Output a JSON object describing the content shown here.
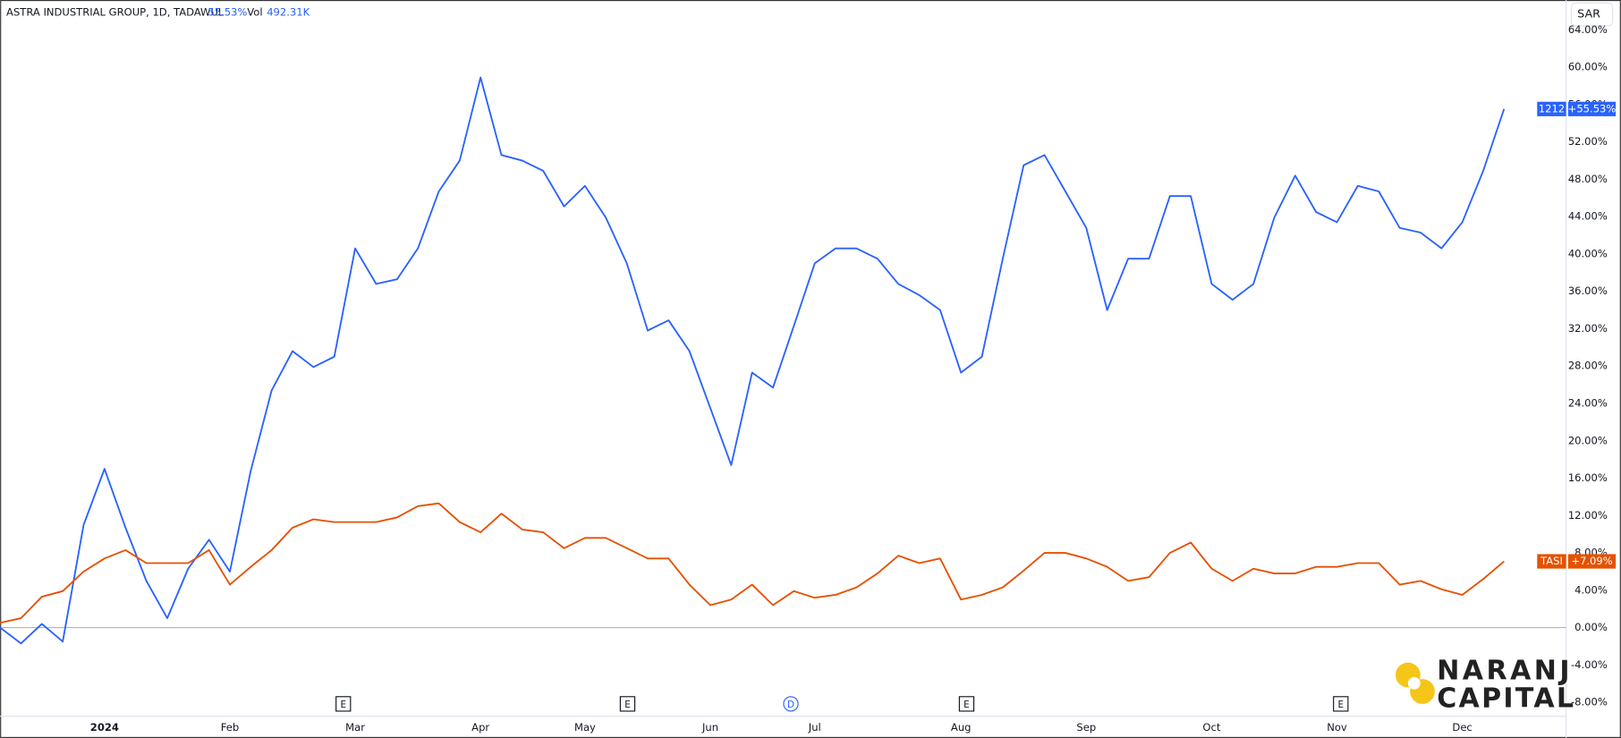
{
  "header": {
    "title": "ASTRA INDUSTRIAL GROUP, 1D, TADAWUL",
    "change": "55.53%",
    "vol_label": "Vol",
    "vol_value": "492.31K"
  },
  "currency": "SAR",
  "events": [
    "E",
    "E",
    "D",
    "E",
    "E"
  ],
  "logo": {
    "line1": "NARANJ",
    "line2": "CAPITAL"
  },
  "chart_data": {
    "type": "line",
    "categories": [
      null,
      null,
      null,
      null,
      null,
      "2024",
      null,
      null,
      null,
      null,
      null,
      "Feb",
      null,
      null,
      null,
      null,
      null,
      "Mar",
      null,
      null,
      null,
      null,
      null,
      "Apr",
      null,
      null,
      null,
      null,
      "May",
      null,
      null,
      null,
      null,
      null,
      "Jun",
      null,
      null,
      null,
      null,
      "Jul",
      null,
      null,
      null,
      null,
      null,
      null,
      "Aug",
      null,
      null,
      null,
      null,
      null,
      "Sep",
      null,
      null,
      null,
      null,
      null,
      "Oct",
      null,
      null,
      null,
      null,
      null,
      "Nov",
      null,
      null,
      null,
      null,
      null,
      "Dec",
      null,
      null
    ],
    "series": [
      {
        "name": "1212",
        "color": "#2962ff",
        "end_label": "+55.53%",
        "values": [
          0,
          -1.7,
          0.4,
          -1.5,
          11.0,
          17.0,
          10.7,
          5.0,
          1.0,
          6.3,
          9.4,
          6.0,
          16.8,
          25.4,
          29.6,
          27.9,
          29.0,
          40.6,
          36.8,
          37.3,
          40.6,
          46.7,
          50.0,
          58.9,
          50.6,
          50.0,
          48.9,
          45.1,
          47.3,
          43.9,
          39.0,
          31.8,
          32.9,
          29.6,
          23.5,
          17.4,
          27.3,
          25.7,
          32.3,
          39.0,
          40.6,
          40.6,
          39.5,
          36.8,
          35.6,
          34.0,
          27.3,
          29.0,
          39.5,
          49.5,
          50.6,
          46.7,
          42.8,
          34.0,
          39.5,
          39.5,
          46.2,
          46.2,
          36.8,
          35.1,
          36.8,
          43.9,
          48.4,
          44.5,
          43.4,
          47.3,
          46.7,
          42.8,
          42.3,
          40.6,
          43.4,
          48.9,
          55.53
        ]
      },
      {
        "name": "TASI",
        "color": "#e65100",
        "end_label": "+7.09%",
        "values": [
          0.5,
          1.0,
          3.3,
          3.9,
          6.0,
          7.4,
          8.3,
          6.9,
          6.9,
          6.9,
          8.3,
          4.6,
          6.5,
          8.3,
          10.7,
          11.6,
          11.3,
          11.3,
          11.3,
          11.8,
          13.0,
          13.3,
          11.3,
          10.2,
          12.2,
          10.5,
          10.2,
          8.5,
          9.6,
          9.6,
          8.5,
          7.4,
          7.4,
          4.6,
          2.4,
          3.0,
          4.6,
          2.4,
          3.9,
          3.2,
          3.5,
          4.3,
          5.8,
          7.7,
          6.9,
          7.4,
          3.0,
          3.5,
          4.3,
          6.1,
          8.0,
          8.0,
          7.4,
          6.5,
          5.0,
          5.4,
          8.0,
          9.1,
          6.3,
          5.0,
          6.3,
          5.8,
          5.8,
          6.5,
          6.5,
          6.9,
          6.9,
          4.6,
          5.0,
          4.1,
          3.5,
          5.2,
          7.09
        ]
      }
    ],
    "ylim": [
      -9.5,
      67.2
    ],
    "yticks": [
      {
        "value": -8,
        "label": "-8.00%"
      },
      {
        "value": -4,
        "label": "-4.00%"
      },
      {
        "value": 0,
        "label": "0.00%"
      },
      {
        "value": 4,
        "label": "4.00%"
      },
      {
        "value": 8,
        "label": "8.00%"
      },
      {
        "value": 12,
        "label": "12.00%"
      },
      {
        "value": 16,
        "label": "16.00%"
      },
      {
        "value": 20,
        "label": "20.00%"
      },
      {
        "value": 24,
        "label": "24.00%"
      },
      {
        "value": 28,
        "label": "28.00%"
      },
      {
        "value": 32,
        "label": "32.00%"
      },
      {
        "value": 36,
        "label": "36.00%"
      },
      {
        "value": 40,
        "label": "40.00%"
      },
      {
        "value": 44,
        "label": "44.00%"
      },
      {
        "value": 48,
        "label": "48.00%"
      },
      {
        "value": 52,
        "label": "52.00%"
      },
      {
        "value": 56,
        "label": "56.00%"
      },
      {
        "value": 60,
        "label": "60.00%"
      },
      {
        "value": 64,
        "label": "64.00%"
      }
    ],
    "grid": false
  }
}
